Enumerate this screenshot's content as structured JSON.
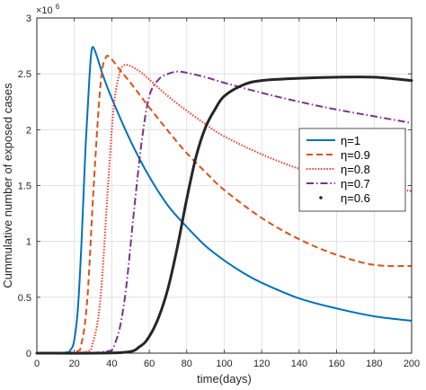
{
  "chart_data": {
    "type": "line",
    "title": "",
    "xlabel": "time(days)",
    "ylabel": "Cummulative number of exposed cases",
    "xlim": [
      0,
      200
    ],
    "ylim": [
      0,
      3000000
    ],
    "x_ticks": [
      0,
      20,
      40,
      60,
      80,
      100,
      120,
      140,
      160,
      180,
      200
    ],
    "x_tick_labels": [
      "0",
      "20",
      "40",
      "60",
      "80",
      "100",
      "120",
      "140",
      "160",
      "180",
      "200"
    ],
    "y_ticks": [
      0,
      500000,
      1000000,
      1500000,
      2000000,
      2500000,
      3000000
    ],
    "y_tick_labels": [
      "0",
      "0.5",
      "1",
      "1.5",
      "2",
      "2.5",
      "3"
    ],
    "y_multiplier": {
      "base": "×10",
      "exponent": "6"
    },
    "grid": true,
    "legend_position": "right",
    "series": [
      {
        "name": "η=1",
        "color": "#0072BD",
        "style": "solid",
        "x": [
          0,
          15,
          18,
          20,
          22,
          24,
          26,
          28,
          29,
          30,
          32,
          35,
          40,
          50,
          60,
          70,
          80,
          90,
          100,
          110,
          120,
          140,
          160,
          180,
          200
        ],
        "y": [
          0,
          5000,
          30000,
          120000,
          420000,
          1050000,
          1850000,
          2450000,
          2680000,
          2740000,
          2660000,
          2500000,
          2280000,
          1900000,
          1580000,
          1320000,
          1130000,
          960000,
          830000,
          720000,
          630000,
          490000,
          400000,
          330000,
          290000
        ]
      },
      {
        "name": "η=0.9",
        "color": "#D95319",
        "style": "dashed",
        "x": [
          0,
          20,
          24,
          27,
          30,
          33,
          35,
          37,
          38,
          40,
          45,
          50,
          60,
          70,
          80,
          90,
          100,
          120,
          140,
          160,
          180,
          200
        ],
        "y": [
          0,
          10000,
          100000,
          500000,
          1400000,
          2200000,
          2550000,
          2650000,
          2660000,
          2630000,
          2520000,
          2420000,
          2200000,
          1990000,
          1790000,
          1620000,
          1460000,
          1210000,
          1020000,
          880000,
          790000,
          780000
        ]
      },
      {
        "name": "η=0.8",
        "color": "#FF2A1A",
        "style": "dotted",
        "x": [
          0,
          25,
          30,
          34,
          38,
          41,
          44,
          46,
          48,
          50,
          55,
          60,
          70,
          80,
          90,
          100,
          120,
          140,
          160,
          180,
          200
        ],
        "y": [
          0,
          10000,
          100000,
          500000,
          1500000,
          2200000,
          2500000,
          2570000,
          2580000,
          2570000,
          2520000,
          2450000,
          2300000,
          2170000,
          2050000,
          1940000,
          1780000,
          1650000,
          1560000,
          1500000,
          1450000
        ]
      },
      {
        "name": "η=0.7",
        "color": "#7E2F8E",
        "style": "dashdot",
        "x": [
          0,
          35,
          42,
          47,
          52,
          56,
          60,
          65,
          70,
          75,
          80,
          90,
          100,
          120,
          140,
          160,
          180,
          200
        ],
        "y": [
          0,
          10000,
          100000,
          500000,
          1300000,
          1900000,
          2300000,
          2450000,
          2500000,
          2520000,
          2510000,
          2470000,
          2420000,
          2330000,
          2250000,
          2180000,
          2120000,
          2060000
        ]
      },
      {
        "name": "η=0.6",
        "color": "#262626",
        "style": "points",
        "x": [
          0,
          45,
          55,
          60,
          65,
          70,
          75,
          80,
          85,
          90,
          95,
          100,
          110,
          120,
          140,
          160,
          180,
          200
        ],
        "y": [
          0,
          5000,
          60000,
          150000,
          320000,
          580000,
          950000,
          1380000,
          1760000,
          2020000,
          2180000,
          2300000,
          2400000,
          2440000,
          2460000,
          2470000,
          2470000,
          2440000
        ]
      }
    ]
  }
}
